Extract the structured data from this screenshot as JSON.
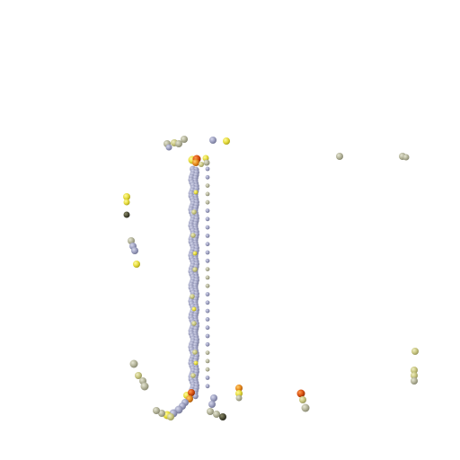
{
  "scene": {
    "background": "#ffffff",
    "palette": {
      "slate": "#8c90ad",
      "lavender": "#a6a8cc",
      "gray": "#b4b49a",
      "khaki": "#c8c680",
      "yellow": "#e6dc3c",
      "orange": "#e88a1c",
      "red": "#d85010",
      "dark": "#3a3a2a"
    }
  }
}
